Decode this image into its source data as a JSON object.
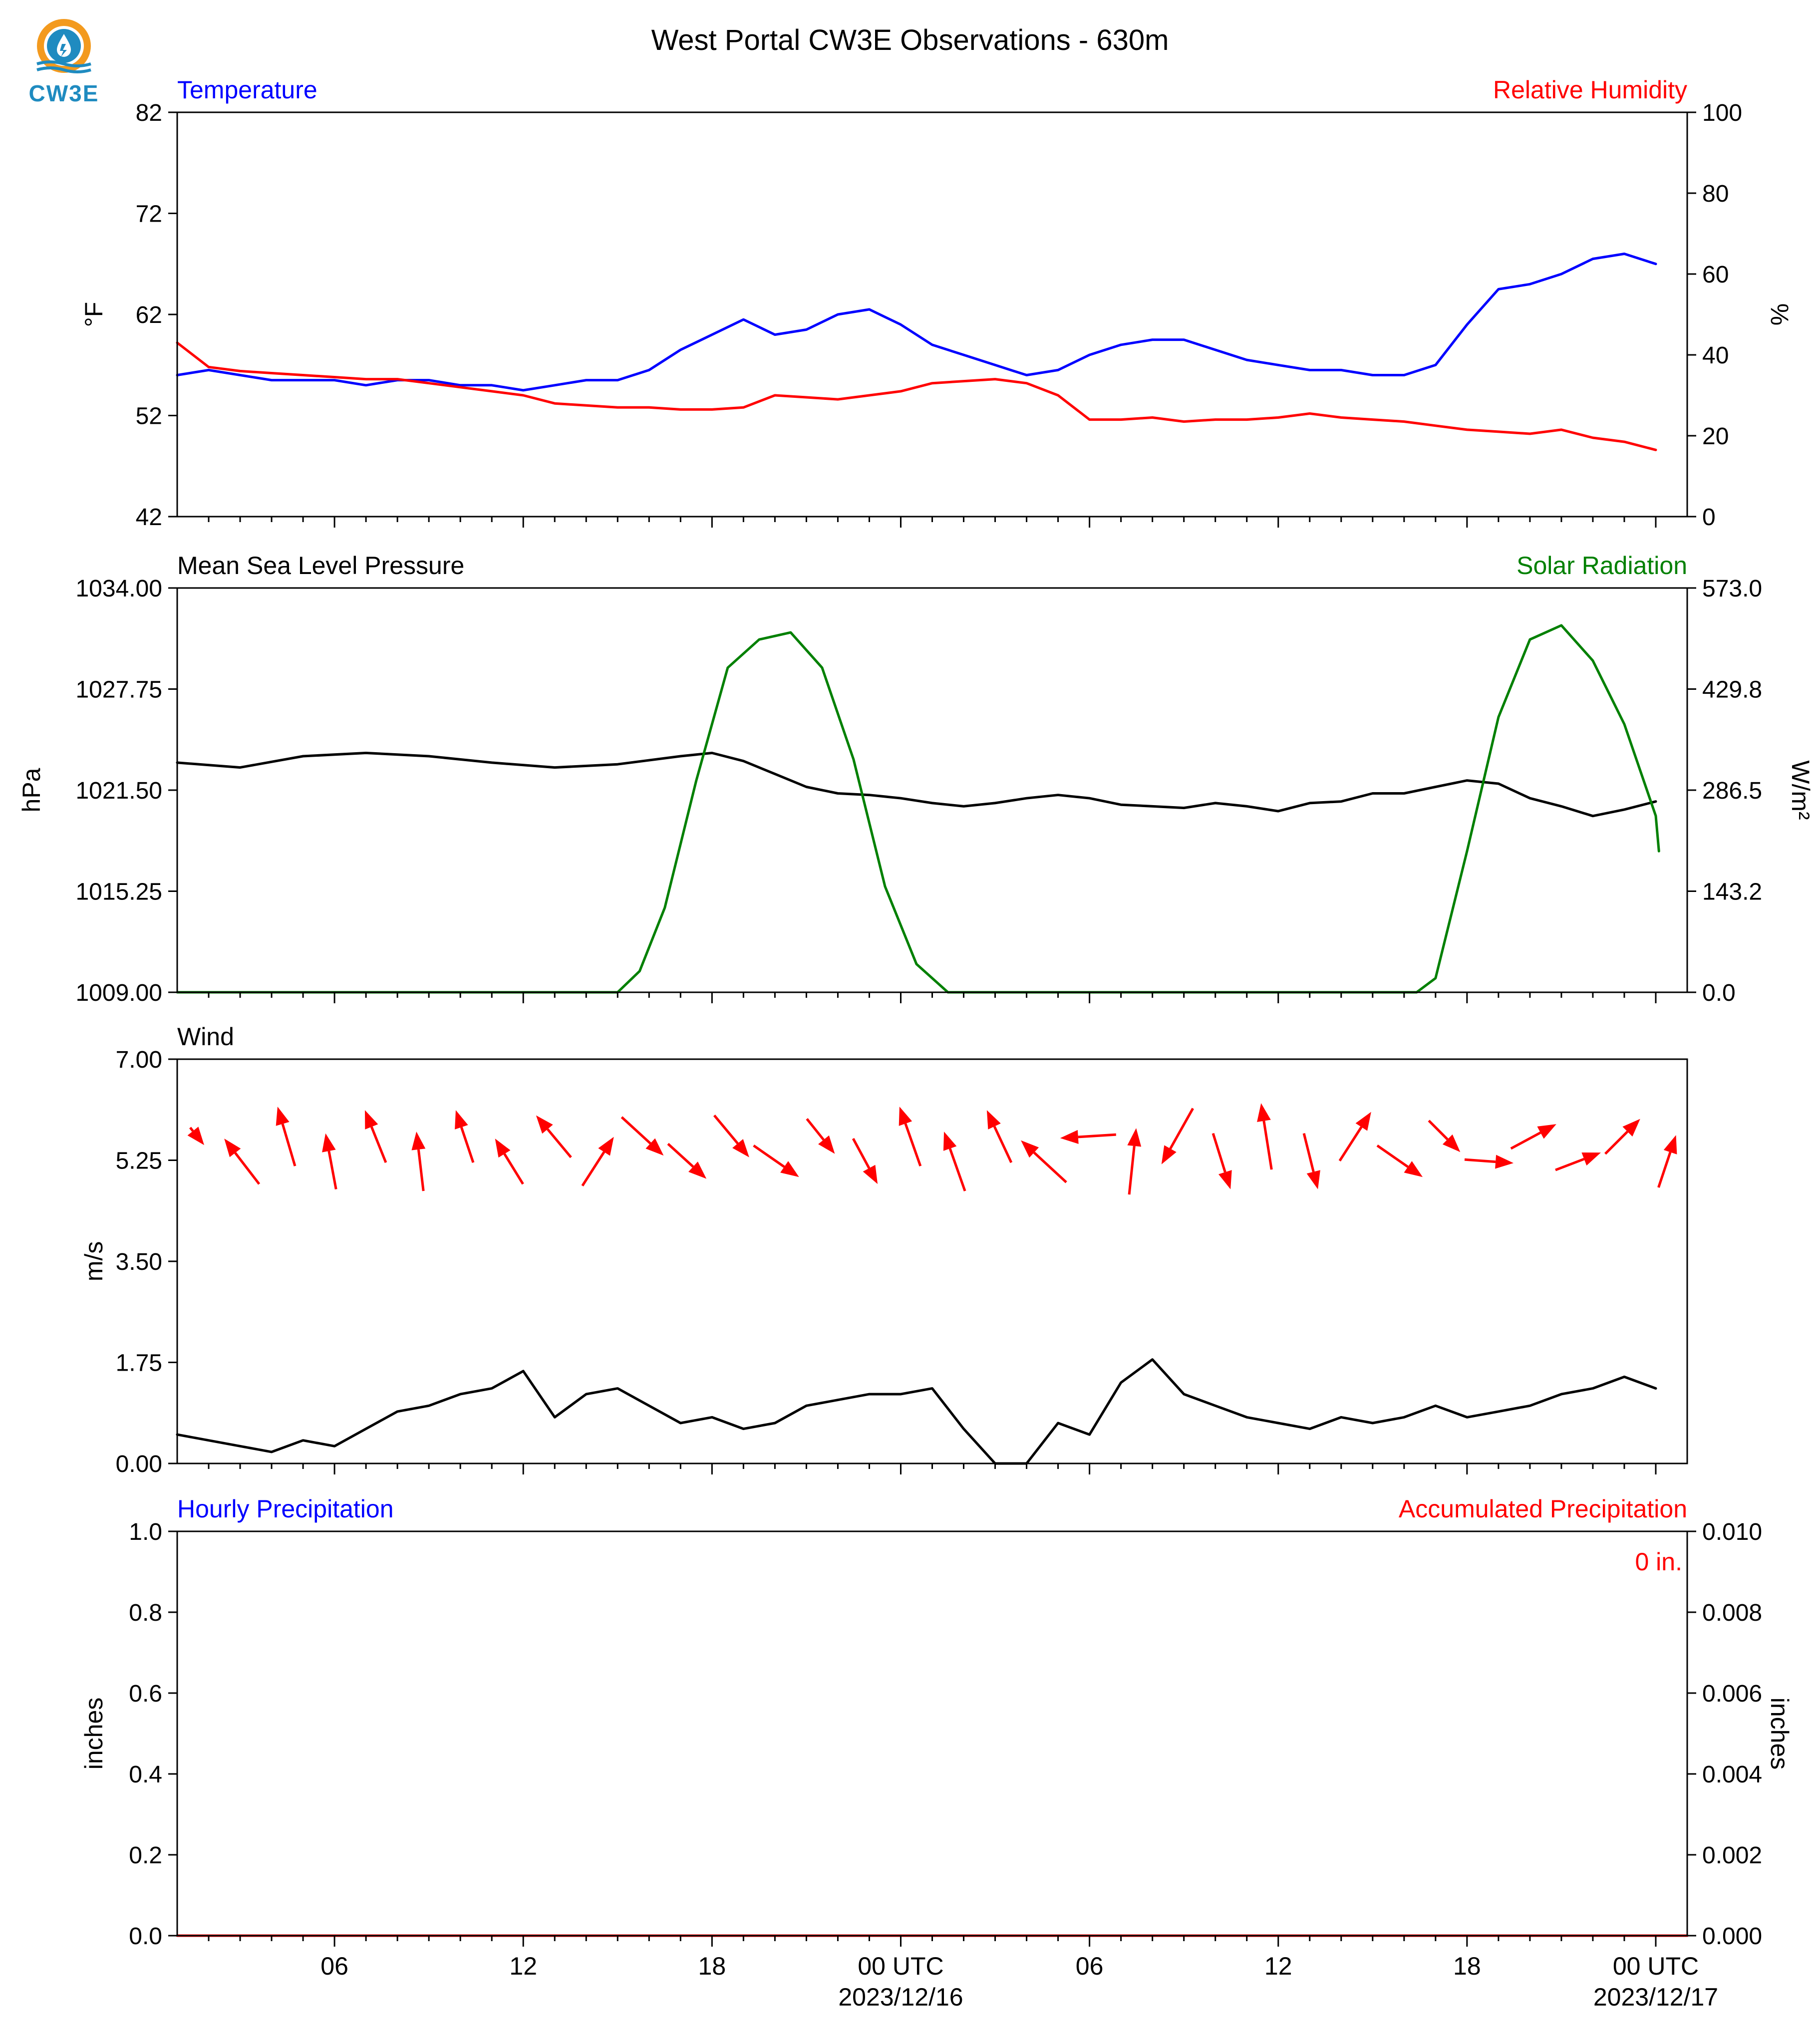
{
  "title": "West Portal CW3E Observations - 630m",
  "logo": {
    "text": "CW3E",
    "colors": {
      "orange": "#f39a1e",
      "blue": "#1f8bc0"
    }
  },
  "x_axis": {
    "tick_labels": [
      "06",
      "12",
      "18",
      "00 UTC",
      "06",
      "12",
      "18",
      "00 UTC"
    ],
    "tick_hours": [
      6,
      12,
      18,
      24,
      30,
      36,
      42,
      48
    ],
    "date_labels": [
      {
        "hour": 24,
        "text": "2023/12/16"
      },
      {
        "hour": 48,
        "text": "2023/12/17"
      }
    ],
    "range_hours": [
      1,
      49
    ]
  },
  "colors": {
    "temperature": "#0000ff",
    "humidity": "#ff0000",
    "pressure": "#000000",
    "solar": "#008000",
    "wind_speed": "#000000",
    "wind_arrow": "#ff0000",
    "hourly_precip": "#0000ff",
    "accum_precip": "#ff0000"
  },
  "chart_data": [
    {
      "type": "line",
      "panel": "temperature_humidity",
      "left_title": "Temperature",
      "right_title": "Relative Humidity",
      "ylabel": "°F",
      "ylabel_right": "%",
      "ylim": [
        42,
        82
      ],
      "ylim_right": [
        0,
        100
      ],
      "yticks": [
        "42",
        "52",
        "62",
        "72",
        "82"
      ],
      "yticks_right": [
        "0",
        "20",
        "40",
        "60",
        "80",
        "100"
      ],
      "series": [
        {
          "name": "Temperature",
          "axis": "left",
          "x": [
            1,
            2,
            3,
            4,
            5,
            6,
            7,
            8,
            9,
            10,
            11,
            12,
            13,
            14,
            15,
            16,
            17,
            18,
            19,
            20,
            21,
            22,
            23,
            24,
            25,
            26,
            27,
            28,
            29,
            30,
            31,
            32,
            33,
            34,
            35,
            36,
            37,
            38,
            39,
            40,
            41,
            42,
            43,
            44,
            45,
            46,
            47,
            48
          ],
          "values": [
            56.0,
            56.5,
            56.0,
            55.5,
            55.5,
            55.5,
            55.0,
            55.5,
            55.5,
            55.0,
            55.0,
            54.5,
            55.0,
            55.5,
            55.5,
            56.5,
            58.5,
            60.0,
            61.5,
            60.0,
            60.5,
            62.0,
            62.5,
            61.0,
            59.0,
            58.0,
            57.0,
            56.0,
            56.5,
            58.0,
            59.0,
            59.5,
            59.5,
            58.5,
            57.5,
            57.0,
            56.5,
            56.5,
            56.0,
            56.0,
            57.0,
            61.0,
            64.5,
            65.0,
            66.0,
            67.5,
            68.0,
            67.0
          ]
        },
        {
          "name": "Relative Humidity",
          "axis": "right",
          "x": [
            1,
            2,
            3,
            4,
            5,
            6,
            7,
            8,
            9,
            10,
            11,
            12,
            13,
            14,
            15,
            16,
            17,
            18,
            19,
            20,
            21,
            22,
            23,
            24,
            25,
            26,
            27,
            28,
            29,
            30,
            31,
            32,
            33,
            34,
            35,
            36,
            37,
            38,
            39,
            40,
            41,
            42,
            43,
            44,
            45,
            46,
            47,
            48
          ],
          "values": [
            43,
            37,
            36,
            35.5,
            35,
            34.5,
            34,
            34,
            33,
            32,
            31,
            30,
            28,
            27.5,
            27,
            27,
            26.5,
            26.5,
            27,
            30,
            29.5,
            29,
            30,
            31,
            33,
            33.5,
            34,
            33,
            30,
            24,
            24,
            24.5,
            23.5,
            24,
            24,
            24.5,
            25.5,
            24.5,
            24,
            23.5,
            22.5,
            21.5,
            21,
            20.5,
            21.5,
            19.5,
            18.5,
            16.5
          ]
        }
      ]
    },
    {
      "type": "line",
      "panel": "pressure_solar",
      "left_title": "Mean Sea Level Pressure",
      "right_title": "Solar Radiation",
      "ylabel": "hPa",
      "ylabel_right": "W/m²",
      "ylim": [
        1009.0,
        1034.0
      ],
      "ylim_right": [
        0.0,
        573.0
      ],
      "yticks": [
        "1009.00",
        "1015.25",
        "1021.50",
        "1027.75",
        "1034.00"
      ],
      "yticks_right": [
        "0.0",
        "143.2",
        "286.5",
        "429.8",
        "573.0"
      ],
      "series": [
        {
          "name": "Mean Sea Level Pressure",
          "axis": "left",
          "x": [
            1,
            3,
            5,
            7,
            9,
            11,
            13,
            15,
            17,
            18,
            19,
            20,
            21,
            22,
            23,
            24,
            25,
            26,
            27,
            28,
            29,
            30,
            31,
            32,
            33,
            34,
            35,
            36,
            37,
            38,
            39,
            40,
            41,
            42,
            43,
            44,
            45,
            46,
            47,
            48
          ],
          "values": [
            1023.2,
            1022.9,
            1023.6,
            1023.8,
            1023.6,
            1023.2,
            1022.9,
            1023.1,
            1023.6,
            1023.8,
            1023.3,
            1022.5,
            1021.7,
            1021.3,
            1021.2,
            1021.0,
            1020.7,
            1020.5,
            1020.7,
            1021.0,
            1021.2,
            1021.0,
            1020.6,
            1020.5,
            1020.4,
            1020.7,
            1020.5,
            1020.2,
            1020.7,
            1020.8,
            1021.3,
            1021.3,
            1021.7,
            1022.1,
            1021.9,
            1021.0,
            1020.5,
            1019.9,
            1020.3,
            1020.8
          ]
        },
        {
          "name": "Solar Radiation",
          "axis": "right",
          "x": [
            1,
            15,
            15.7,
            16.5,
            17.5,
            18.5,
            19.5,
            20.5,
            21.5,
            22.5,
            23.5,
            24.5,
            25.5,
            40.4,
            41,
            42,
            43,
            44,
            45,
            46,
            47,
            48,
            48.1
          ],
          "values": [
            0,
            0,
            30,
            120,
            300,
            460,
            500,
            510,
            460,
            330,
            150,
            40,
            0,
            0,
            20,
            200,
            390,
            500,
            520,
            470,
            380,
            250,
            200
          ]
        }
      ]
    },
    {
      "type": "line",
      "panel": "wind",
      "left_title": "Wind",
      "ylabel": "m/s",
      "ylim": [
        0.0,
        7.0
      ],
      "yticks": [
        "0.00",
        "1.75",
        "3.50",
        "5.25",
        "7.00"
      ],
      "series": [
        {
          "name": "Wind Speed",
          "axis": "left",
          "x": [
            1,
            2,
            3,
            4,
            5,
            6,
            7,
            8,
            9,
            10,
            11,
            12,
            13,
            14,
            15,
            16,
            17,
            18,
            19,
            20,
            21,
            22,
            23,
            24,
            25,
            26,
            27,
            28,
            29,
            30,
            31,
            32,
            33,
            34,
            35,
            36,
            37,
            38,
            39,
            40,
            41,
            42,
            43,
            44,
            45,
            46,
            47,
            48
          ],
          "values": [
            0.5,
            0.4,
            0.3,
            0.2,
            0.4,
            0.3,
            0.6,
            0.9,
            1.0,
            1.2,
            1.3,
            1.6,
            0.8,
            1.2,
            1.3,
            1.0,
            0.7,
            0.8,
            0.6,
            0.7,
            1.0,
            1.1,
            1.2,
            1.2,
            1.3,
            0.6,
            0.0,
            0.0,
            0.7,
            0.5,
            1.4,
            1.8,
            1.2,
            1.0,
            0.8,
            0.7,
            0.6,
            0.8,
            0.7,
            0.8,
            1.0,
            0.8,
            0.9,
            1.0,
            1.2,
            1.3,
            1.5,
            1.3
          ]
        }
      ],
      "arrows_m_s": [
        [
          0.4,
          -0.5
        ],
        [
          -1.0,
          1.3
        ],
        [
          -0.5,
          1.7
        ],
        [
          -0.3,
          1.6
        ],
        [
          -0.6,
          1.5
        ],
        [
          -0.2,
          1.7
        ],
        [
          -0.5,
          1.5
        ],
        [
          -0.8,
          1.3
        ],
        [
          -1.0,
          1.2
        ],
        [
          0.9,
          1.4
        ],
        [
          1.2,
          -1.1
        ],
        [
          1.1,
          -1.0
        ],
        [
          1.0,
          -1.2
        ],
        [
          1.3,
          -0.9
        ],
        [
          0.8,
          -1.0
        ],
        [
          0.7,
          -1.3
        ],
        [
          -0.6,
          1.7
        ],
        [
          -0.6,
          1.7
        ],
        [
          -0.7,
          1.5
        ],
        [
          -1.3,
          1.2
        ],
        [
          -1.6,
          -0.1
        ],
        [
          0.2,
          1.9
        ],
        [
          -0.9,
          -1.6
        ],
        [
          0.5,
          -1.6
        ],
        [
          -0.3,
          1.9
        ],
        [
          0.4,
          -1.6
        ],
        [
          0.9,
          1.4
        ],
        [
          1.3,
          -0.9
        ],
        [
          0.9,
          -0.9
        ],
        [
          1.4,
          -0.1
        ],
        [
          1.3,
          0.7
        ],
        [
          1.3,
          0.5
        ],
        [
          1.0,
          1.0
        ],
        [
          0.5,
          1.5
        ]
      ]
    },
    {
      "type": "line",
      "panel": "precipitation",
      "left_title": "Hourly Precipitation",
      "right_title": "Accumulated Precipitation",
      "ylabel": "inches",
      "ylabel_right": "inches",
      "ylim": [
        0.0,
        1.0
      ],
      "ylim_right": [
        0.0,
        0.01
      ],
      "yticks": [
        "0.0",
        "0.2",
        "0.4",
        "0.6",
        "0.8",
        "1.0"
      ],
      "yticks_right": [
        "0.000",
        "0.002",
        "0.004",
        "0.006",
        "0.008",
        "0.010"
      ],
      "annotation": "0 in.",
      "series": [
        {
          "name": "Hourly Precipitation",
          "axis": "left",
          "x": [
            1,
            49
          ],
          "values": [
            0,
            0
          ]
        },
        {
          "name": "Accumulated Precipitation",
          "axis": "right",
          "x": [
            1,
            49
          ],
          "values": [
            0,
            0
          ]
        }
      ]
    }
  ]
}
